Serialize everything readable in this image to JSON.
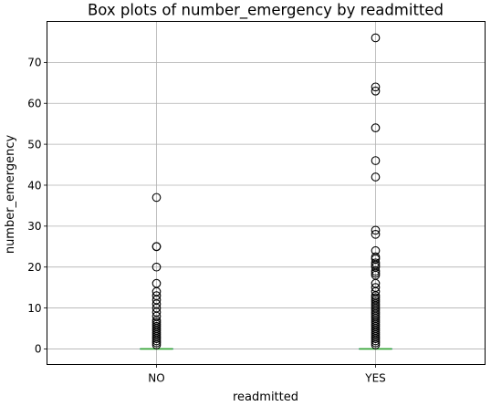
{
  "chart_data": {
    "type": "box",
    "title": "Box plots of number_emergency by readmitted",
    "xlabel": "readmitted",
    "ylabel": "number_emergency",
    "categories": [
      "NO",
      "YES"
    ],
    "ylim": [
      -3.8,
      80
    ],
    "yticks": [
      0,
      10,
      20,
      30,
      40,
      50,
      60,
      70
    ],
    "grid": true,
    "boxes": [
      {
        "category": "NO",
        "q1": 0,
        "median": 0,
        "q3": 0,
        "whisker_low": 0,
        "whisker_high": 0,
        "outliers": [
          1,
          1.5,
          2,
          2.5,
          3,
          3.5,
          4,
          4.5,
          5,
          5.5,
          6,
          6.5,
          7,
          8,
          9,
          10,
          11,
          12,
          13,
          14,
          16,
          20,
          25,
          25,
          37
        ]
      },
      {
        "category": "YES",
        "q1": 0,
        "median": 0,
        "q3": 0,
        "whisker_low": 0,
        "whisker_high": 0,
        "outliers": [
          1,
          1.5,
          2,
          2.5,
          3,
          3.5,
          4,
          4.5,
          5,
          5.5,
          6,
          6.5,
          7,
          7.5,
          8,
          8.5,
          9,
          9.5,
          10,
          10.5,
          11,
          11.5,
          12,
          12.5,
          13,
          14,
          15,
          16,
          18,
          18.5,
          19,
          20,
          20.5,
          21,
          22,
          22.5,
          24,
          28,
          29,
          42,
          46,
          54,
          63,
          64,
          76
        ]
      }
    ],
    "colors": {
      "grid": "#b0b0b0",
      "axes": "#000000",
      "box": "#1f77b4",
      "median": "#2ca02c",
      "outlier_edge": "#000000"
    }
  }
}
